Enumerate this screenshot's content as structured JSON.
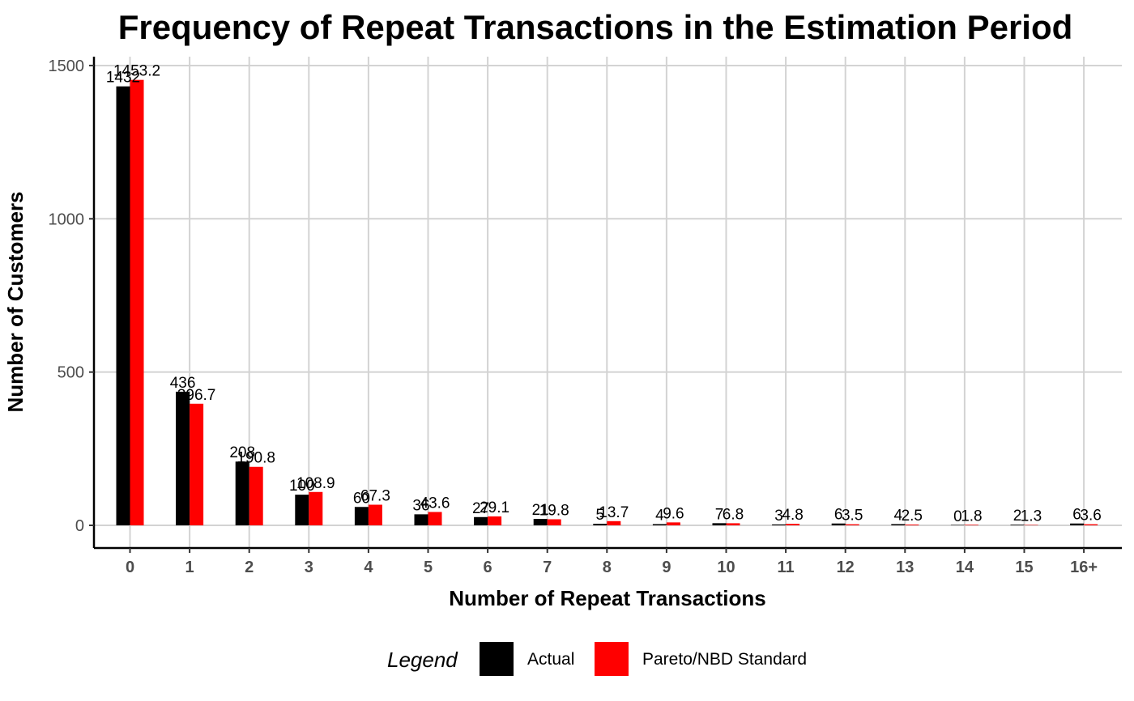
{
  "chart_data": {
    "type": "bar",
    "title": "Frequency of Repeat Transactions in the Estimation Period",
    "xlabel": "Number of Repeat Transactions",
    "ylabel": "Number of Customers",
    "categories": [
      "0",
      "1",
      "2",
      "3",
      "4",
      "5",
      "6",
      "7",
      "8",
      "9",
      "10",
      "11",
      "12",
      "13",
      "14",
      "15",
      "16+"
    ],
    "series": [
      {
        "name": "Actual",
        "color": "#000000",
        "values": [
          1432,
          436,
          208,
          100,
          60,
          36,
          27,
          21,
          5,
          4,
          7,
          3,
          6,
          4,
          0,
          2,
          6
        ],
        "labels": [
          "1432",
          "436",
          "208",
          "100",
          "60",
          "36",
          "27",
          "21",
          "5",
          "4",
          "7",
          "3",
          "6",
          "4",
          "0",
          "2",
          "6"
        ]
      },
      {
        "name": "Pareto/NBD Standard",
        "color": "#ff0000",
        "values": [
          1453.2,
          396.7,
          190.8,
          108.9,
          67.3,
          43.6,
          29.1,
          19.8,
          13.7,
          9.6,
          6.8,
          4.8,
          3.5,
          2.5,
          1.8,
          1.3,
          3.6
        ],
        "labels": [
          "1453.2",
          "396.7",
          "190.8",
          "108.9",
          "67.3",
          "43.6",
          "29.1",
          "19.8",
          "13.7",
          "9.6",
          "6.8",
          "4.8",
          "3.5",
          "2.5",
          "1.8",
          "1.3",
          "3.6"
        ]
      }
    ],
    "yticks": [
      0,
      500,
      1000,
      1500
    ],
    "ylim": [
      -75,
      1510
    ],
    "grid": true,
    "legend": {
      "title": "Legend",
      "position": "bottom"
    }
  }
}
